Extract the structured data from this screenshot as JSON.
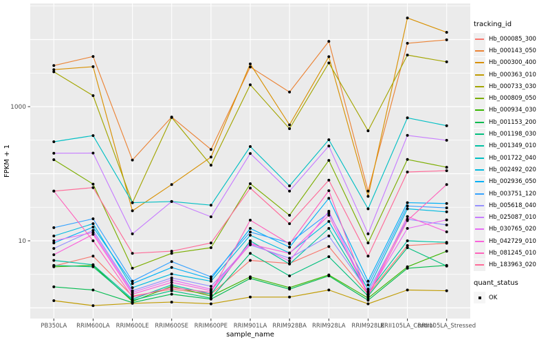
{
  "chart_data": {
    "type": "line",
    "title": "",
    "xlabel": "sample_name",
    "ylabel": "FPKM + 1",
    "y_scale": "log10",
    "ylim": [
      0.7,
      35000
    ],
    "grid": "major+minor",
    "panel_color": "#EBEBEB",
    "grid_color": "#FFFFFF",
    "tick_label_color": "#4D4D4D",
    "point_color": "#000000",
    "y_ticks": [
      {
        "value": 10,
        "label": "10"
      },
      {
        "value": 1000,
        "label": "1000"
      }
    ],
    "categories": [
      "PB350LA",
      "RRIM600LA",
      "RRIM600LE",
      "RRIM600SE",
      "RRIM600PE",
      "RRIM901LA",
      "RRIM928BA",
      "RRIM928LA",
      "RRIM928LE",
      "RRII105LA_Control",
      "RRII105LA_Stressed"
    ],
    "series": [
      {
        "name": "Hb_000085_300",
        "color": "#F8766D",
        "values": [
          4.2,
          5.9,
          1.5,
          1.9,
          1.6,
          5.1,
          4.6,
          8.2,
          1.6,
          8.5,
          9.2
        ]
      },
      {
        "name": "Hb_000143_050",
        "color": "#EB8335",
        "values": [
          4100,
          5600,
          160,
          700,
          230,
          3900,
          1650,
          9400,
          55,
          8800,
          9900
        ]
      },
      {
        "name": "Hb_000300_400",
        "color": "#D89000",
        "values": [
          3560,
          3940,
          28,
          69,
          177,
          4330,
          535,
          5560,
          46,
          21000,
          12800
        ]
      },
      {
        "name": "Hb_000363_010",
        "color": "#C09B00",
        "values": [
          1.28,
          1.08,
          1.17,
          1.22,
          1.15,
          1.45,
          1.45,
          1.85,
          1.15,
          1.85,
          1.8
        ]
      },
      {
        "name": "Hb_000733_030",
        "color": "#A3A500",
        "values": [
          3300,
          1460,
          37,
          690,
          134,
          2120,
          470,
          4480,
          437,
          5880,
          4650
        ]
      },
      {
        "name": "Hb_000809_050",
        "color": "#7CAE00",
        "values": [
          162,
          70,
          3.9,
          6.5,
          7.9,
          71,
          24,
          158,
          9.3,
          163,
          125
        ]
      },
      {
        "name": "Hb_000934_030",
        "color": "#39B600",
        "values": [
          4.1,
          4.3,
          1.25,
          2.1,
          1.5,
          2.9,
          2.0,
          3.1,
          1.4,
          4.1,
          7.0
        ]
      },
      {
        "name": "Hb_001153_200",
        "color": "#00BB4E",
        "values": [
          2.06,
          1.85,
          1.2,
          1.6,
          1.35,
          2.75,
          1.9,
          3.0,
          1.3,
          3.9,
          4.3
        ]
      },
      {
        "name": "Hb_001198_030",
        "color": "#00BF7D",
        "values": [
          4.3,
          4.1,
          1.3,
          1.8,
          1.4,
          6.5,
          3.0,
          5.8,
          1.5,
          7.9,
          4.2
        ]
      },
      {
        "name": "Hb_001349_010",
        "color": "#00C1A3",
        "values": [
          5.1,
          4.4,
          1.35,
          2.2,
          1.6,
          10,
          4.5,
          15.3,
          1.7,
          10,
          9.5
        ]
      },
      {
        "name": "Hb_001722_040",
        "color": "#00BFC4",
        "values": [
          300,
          370,
          37,
          38.5,
          34,
          254,
          66,
          321,
          30,
          680,
          520
        ]
      },
      {
        "name": "Hb_002492_020",
        "color": "#00BAE0",
        "values": [
          11.8,
          18,
          2.0,
          3.2,
          2.5,
          12.1,
          6.6,
          19.4,
          1.9,
          30,
          27
        ]
      },
      {
        "name": "Hb_002936_050",
        "color": "#00B0F6",
        "values": [
          9.3,
          16,
          2.3,
          4.0,
          2.7,
          15.3,
          8.0,
          43,
          2.5,
          37,
          36
        ]
      },
      {
        "name": "Hb_003751_120",
        "color": "#35A2FF",
        "values": [
          15.7,
          21.3,
          2.5,
          4.9,
          2.9,
          13.5,
          9.3,
          26,
          2.2,
          33,
          31
        ]
      },
      {
        "name": "Hb_005618_040",
        "color": "#9590FF",
        "values": [
          7.7,
          14.3,
          1.8,
          2.8,
          2.1,
          8.7,
          5.5,
          11.8,
          1.75,
          21,
          17.2
        ]
      },
      {
        "name": "Hb_025087_010",
        "color": "#C77CFF",
        "values": [
          202,
          203,
          12.7,
          38.5,
          22.8,
          200,
          55,
          259,
          12.7,
          373,
          315
        ]
      },
      {
        "name": "Hb_030765_020",
        "color": "#E76BF3",
        "values": [
          10,
          13.3,
          1.7,
          2.6,
          1.9,
          9.4,
          5.0,
          27.6,
          1.6,
          15.3,
          20.5
        ]
      },
      {
        "name": "Hb_042729_010",
        "color": "#FA62DB",
        "values": [
          6.2,
          12.5,
          1.6,
          2.4,
          1.8,
          8.9,
          6.5,
          24,
          1.55,
          23,
          13.6
        ]
      },
      {
        "name": "Hb_081245_010",
        "color": "#FF62BC",
        "values": [
          55,
          10,
          1.45,
          2.0,
          1.7,
          20.3,
          9.0,
          56,
          1.5,
          20,
          69
        ]
      },
      {
        "name": "Hb_183963_020",
        "color": "#FF6A98",
        "values": [
          55,
          62,
          6.5,
          7.0,
          9.3,
          61,
          18,
          80,
          5.9,
          106,
          111
        ]
      }
    ],
    "legend": {
      "position": "right",
      "tracking_title": "tracking_id",
      "quant_title": "quant_status",
      "quant_items": [
        {
          "label": "OK",
          "marker": "black-square"
        }
      ]
    }
  }
}
